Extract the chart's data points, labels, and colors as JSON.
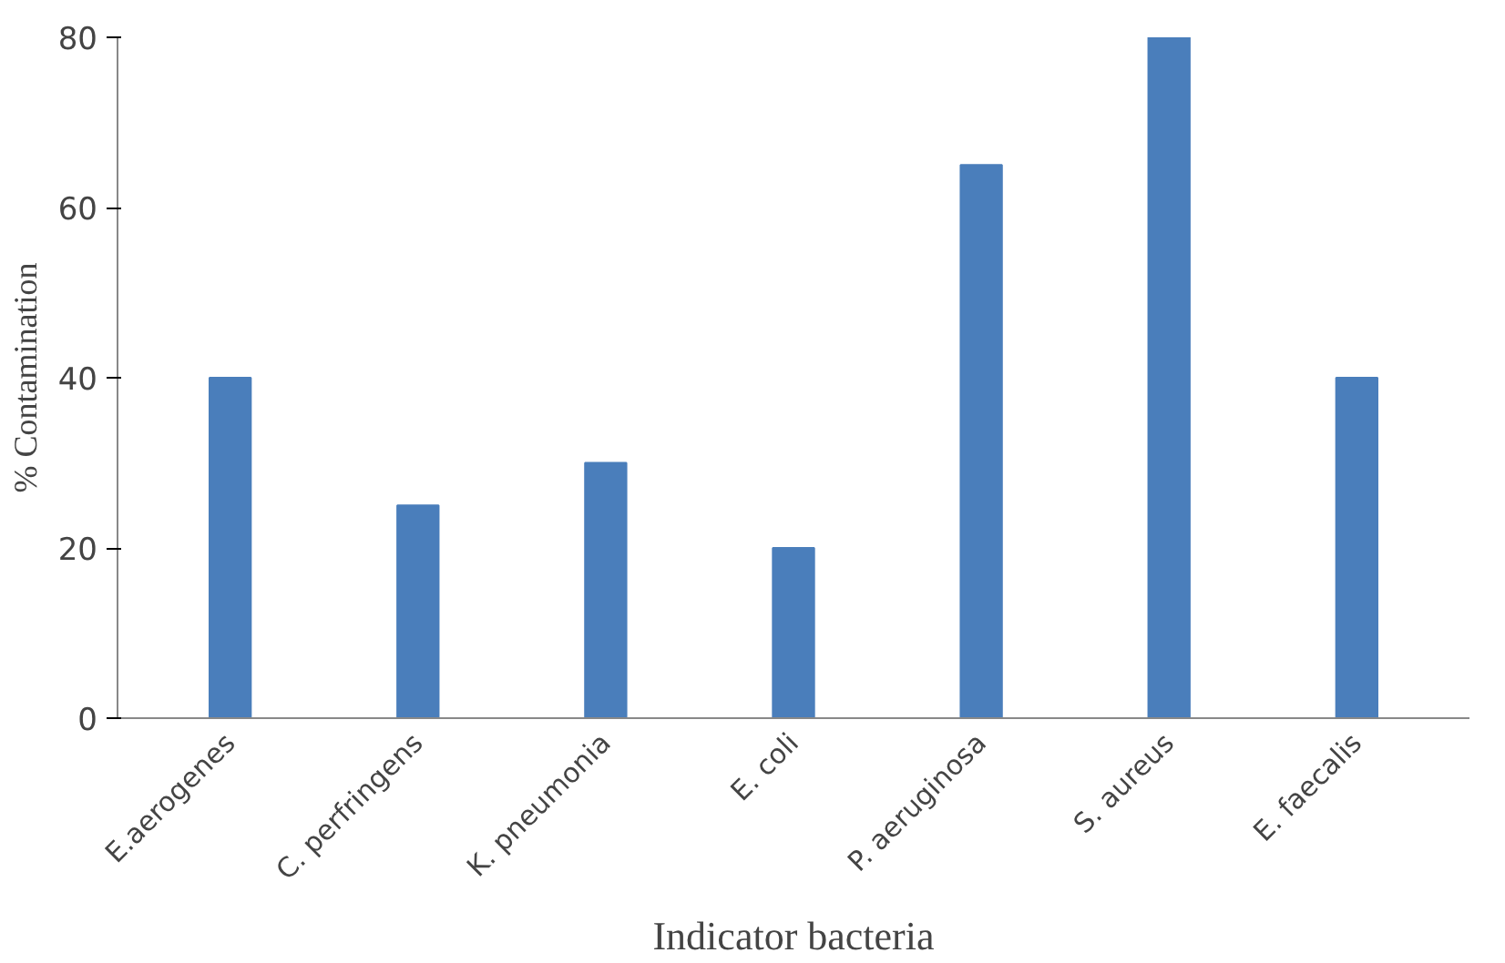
{
  "chart_data": {
    "type": "bar",
    "xlabel": "Indicator bacteria",
    "ylabel": "% Contamination",
    "categories": [
      "E.aerogenes",
      "C. perfringens",
      "K. pneumonia",
      "E. coli",
      "P. aeruginosa",
      "S. aureus",
      "E. faecalis"
    ],
    "values": [
      40,
      25,
      30,
      20,
      65,
      80,
      40
    ],
    "color": "#4a7ebb",
    "ylim": [
      0,
      80
    ],
    "yticks": [
      0,
      20,
      40,
      60,
      80
    ],
    "grid": false
  }
}
